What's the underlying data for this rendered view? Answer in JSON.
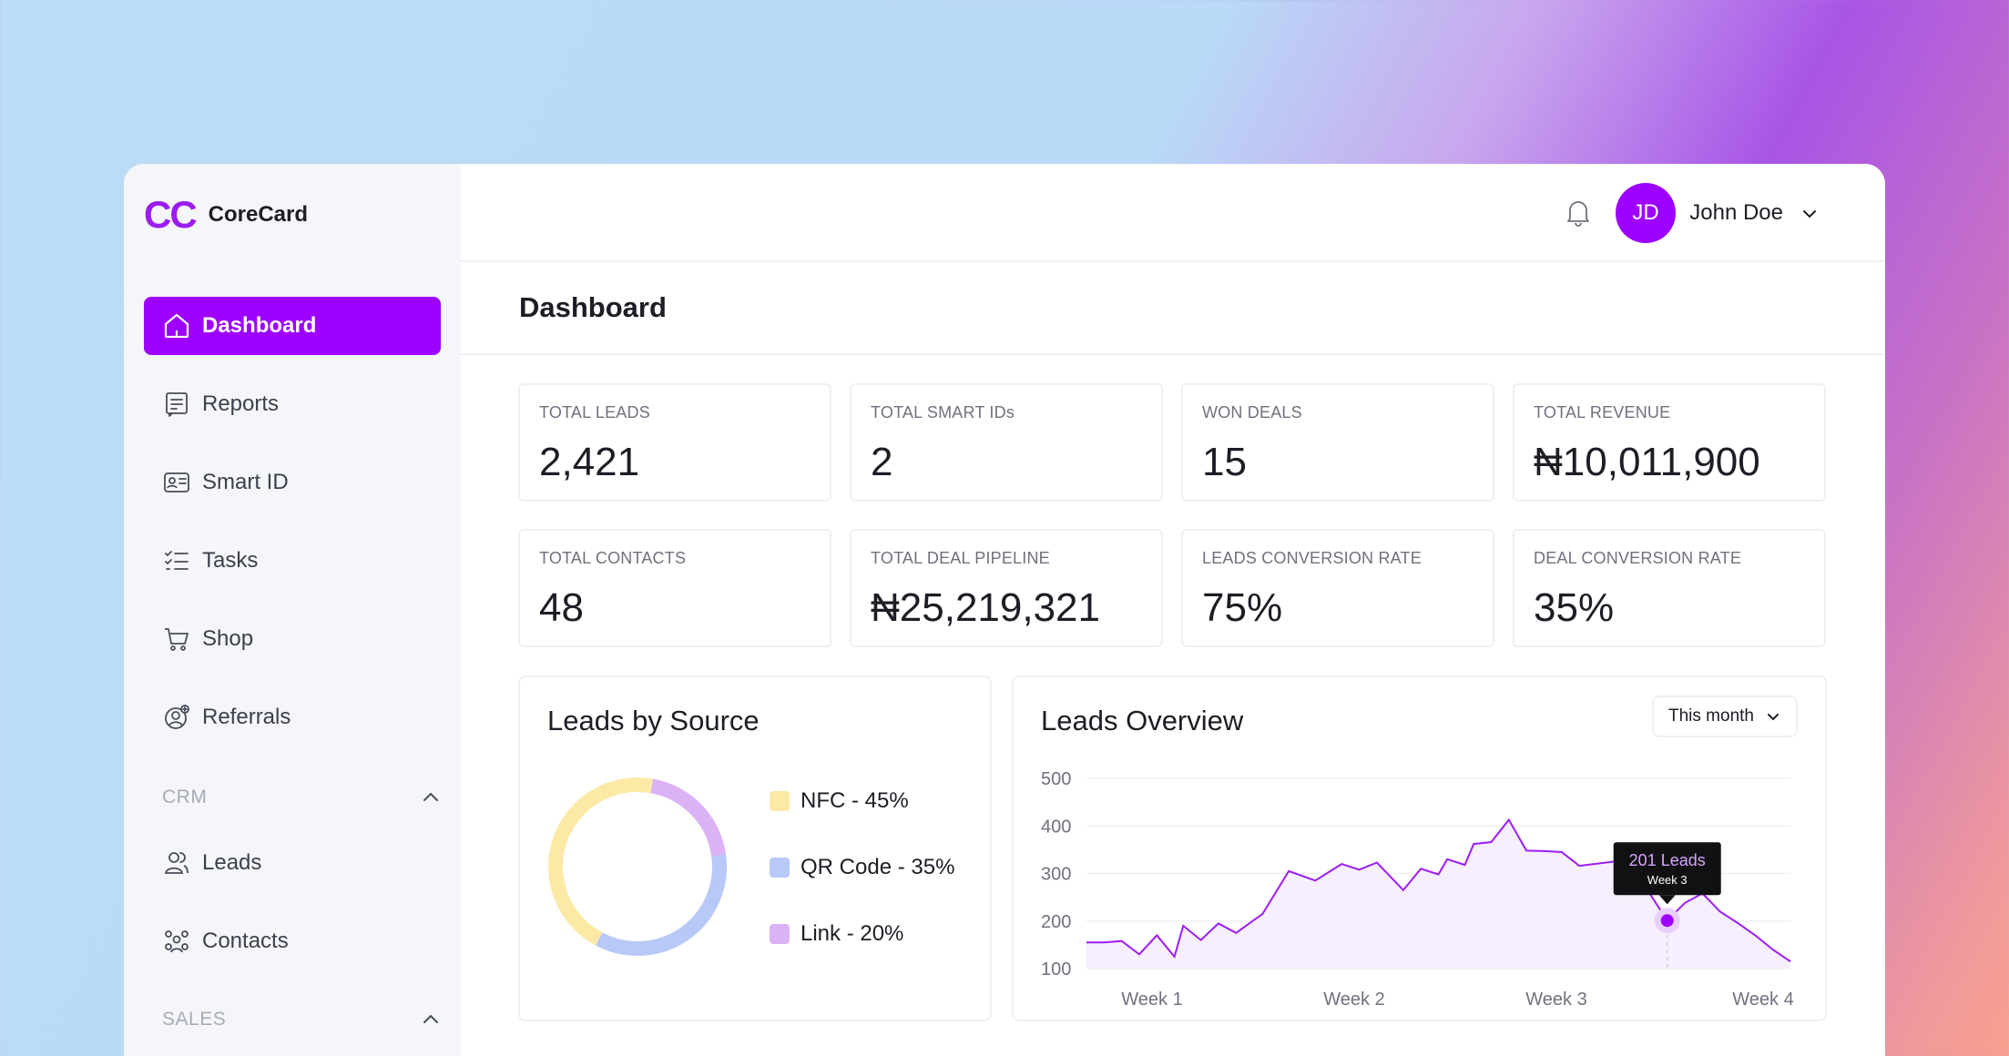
{
  "app": {
    "logo_mark": "CC",
    "name": "CoreCard"
  },
  "header": {
    "user_initials": "JD",
    "user_name": "John Doe"
  },
  "page": {
    "title": "Dashboard"
  },
  "sidebar": {
    "items": [
      {
        "label": "Dashboard",
        "icon": "home-icon"
      },
      {
        "label": "Reports",
        "icon": "report-icon"
      },
      {
        "label": "Smart ID",
        "icon": "id-card-icon"
      },
      {
        "label": "Tasks",
        "icon": "checklist-icon"
      },
      {
        "label": "Shop",
        "icon": "cart-icon"
      },
      {
        "label": "Referrals",
        "icon": "referral-icon"
      }
    ],
    "crm_label": "CRM",
    "crm_items": [
      {
        "label": "Leads",
        "icon": "users-icon"
      },
      {
        "label": "Contacts",
        "icon": "contacts-icon"
      }
    ],
    "sales_label": "SALES"
  },
  "stats": [
    {
      "label": "TOTAL LEADS",
      "value": "2,421"
    },
    {
      "label": "TOTAL SMART IDs",
      "value": "2"
    },
    {
      "label": "WON DEALS",
      "value": "15"
    },
    {
      "label": "TOTAL REVENUE",
      "value": "₦10,011,900"
    },
    {
      "label": "TOTAL CONTACTS",
      "value": "48"
    },
    {
      "label": "TOTAL DEAL PIPELINE",
      "value": "₦25,219,321"
    },
    {
      "label": "LEADS CONVERSION RATE",
      "value": "75%"
    },
    {
      "label": "DEAL CONVERSION RATE",
      "value": "35%"
    }
  ],
  "leads_by_source": {
    "title": "Leads by Source",
    "legend": [
      "NFC - 45%",
      "QR Code - 35%",
      "Link - 20%"
    ]
  },
  "leads_overview": {
    "title": "Leads Overview",
    "filter_label": "This month",
    "tooltip_title": "201 Leads",
    "tooltip_sub": "Week 3"
  },
  "colors": {
    "accent": "#9d00ff",
    "nfc": "#fde9a6",
    "qr": "#b8c8f7",
    "link": "#dcb2f6",
    "line": "#9d1cf0"
  },
  "chart_data": [
    {
      "type": "pie",
      "categories": [
        "NFC",
        "QR Code",
        "Link"
      ],
      "values": [
        45,
        35,
        20
      ]
    },
    {
      "type": "area",
      "title": "Leads Overview",
      "xticks": [
        "Week 1",
        "Week 2",
        "Week 3",
        "Week 4"
      ],
      "ylim": [
        100,
        500
      ],
      "yticks": [
        "500",
        "400",
        "300",
        "200",
        "100"
      ],
      "x": [
        0.0,
        0.1,
        0.2,
        0.3,
        0.4,
        0.5,
        0.55,
        0.65,
        0.75,
        0.85,
        1.0,
        1.15,
        1.3,
        1.45,
        1.55,
        1.65,
        1.8,
        1.9,
        2.0,
        2.05,
        2.15,
        2.2,
        2.3,
        2.4,
        2.5,
        2.6,
        2.7,
        2.8,
        3.0,
        3.1,
        3.2,
        3.3,
        3.4,
        3.5,
        3.6,
        3.7,
        3.8,
        3.9,
        4.0
      ],
      "values": [
        155,
        155,
        158,
        130,
        170,
        125,
        190,
        160,
        195,
        175,
        215,
        305,
        285,
        320,
        308,
        323,
        265,
        310,
        298,
        330,
        318,
        362,
        366,
        413,
        348,
        347,
        345,
        316,
        325,
        310,
        258,
        201,
        238,
        258,
        220,
        196,
        170,
        140,
        115
      ]
    }
  ]
}
